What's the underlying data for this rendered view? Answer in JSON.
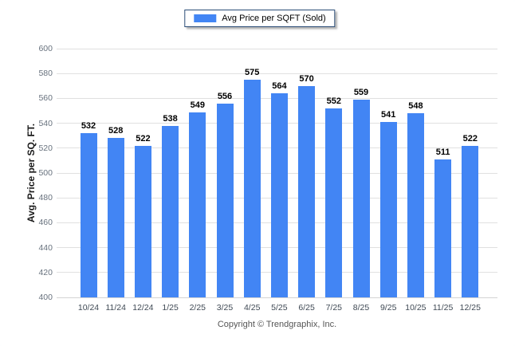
{
  "chart_data": {
    "type": "bar",
    "title": "",
    "legend": "Avg Price per SQFT (Sold)",
    "ylabel": "Avg. Price per SQ. FT.",
    "xlabel": "",
    "ylim": [
      400,
      600
    ],
    "ytick_step": 20,
    "categories": [
      "10/24",
      "11/24",
      "12/24",
      "1/25",
      "2/25",
      "3/25",
      "4/25",
      "5/25",
      "6/25",
      "7/25",
      "8/25",
      "9/25",
      "10/25",
      "11/25",
      "12/25"
    ],
    "values": [
      532,
      528,
      522,
      538,
      549,
      556,
      575,
      564,
      570,
      552,
      559,
      541,
      548,
      511,
      522
    ],
    "bar_color": "#4285f4",
    "grid": true,
    "legend_position": "top-center"
  },
  "footer": {
    "copyright": "Copyright © Trendgraphix, Inc."
  }
}
